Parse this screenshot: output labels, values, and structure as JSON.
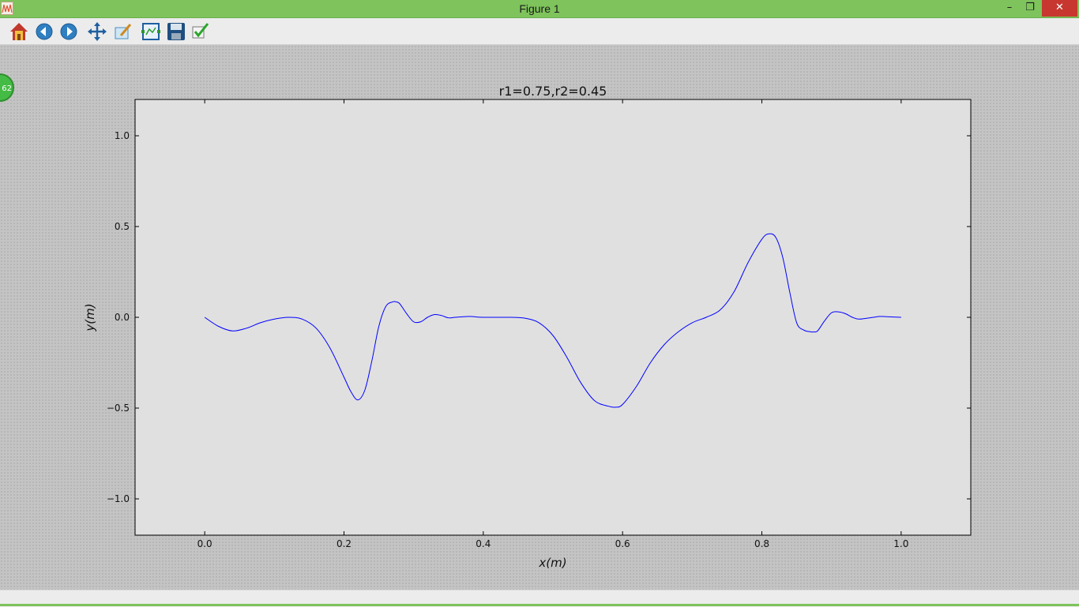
{
  "window": {
    "title": "Figure 1",
    "minimize_glyph": "–",
    "maximize_glyph": "❐",
    "close_glyph": "✕"
  },
  "toolbar": {
    "buttons": [
      "home-icon",
      "back-icon",
      "forward-icon",
      "pan-icon",
      "edit-parameters-icon",
      "configure-subplots-icon",
      "save-icon",
      "apply-icon"
    ]
  },
  "badge": {
    "text": "62"
  },
  "chart_data": {
    "type": "line",
    "title": "r1=0.75,r2=0.45",
    "xlabel": "x(m)",
    "ylabel": "y(m)",
    "xlim": [
      -0.1,
      1.1
    ],
    "ylim": [
      -1.2,
      1.2
    ],
    "xticks": [
      0.0,
      0.2,
      0.4,
      0.6,
      0.8,
      1.0
    ],
    "xtick_labels": [
      "0.0",
      "0.2",
      "0.4",
      "0.6",
      "0.8",
      "1.0"
    ],
    "yticks": [
      1.0,
      0.5,
      0.0,
      -0.5,
      -1.0
    ],
    "ytick_labels": [
      "1.0",
      "0.5",
      "0.0",
      "−0.5",
      "−1.0"
    ],
    "grid": false,
    "series": [
      {
        "name": "y",
        "color": "#0000ff",
        "x": [
          0.0,
          0.02,
          0.04,
          0.06,
          0.08,
          0.1,
          0.12,
          0.14,
          0.16,
          0.18,
          0.2,
          0.21,
          0.22,
          0.23,
          0.24,
          0.25,
          0.26,
          0.27,
          0.275,
          0.28,
          0.29,
          0.3,
          0.31,
          0.32,
          0.33,
          0.34,
          0.35,
          0.36,
          0.38,
          0.4,
          0.44,
          0.46,
          0.48,
          0.5,
          0.52,
          0.54,
          0.56,
          0.58,
          0.59,
          0.6,
          0.62,
          0.64,
          0.66,
          0.68,
          0.7,
          0.72,
          0.74,
          0.76,
          0.78,
          0.8,
          0.81,
          0.82,
          0.83,
          0.84,
          0.85,
          0.86,
          0.87,
          0.875,
          0.88,
          0.89,
          0.9,
          0.91,
          0.92,
          0.93,
          0.94,
          0.96,
          0.97,
          0.98,
          1.0
        ],
        "y": [
          0.0,
          -0.05,
          -0.075,
          -0.06,
          -0.03,
          -0.01,
          0.0,
          -0.01,
          -0.06,
          -0.17,
          -0.33,
          -0.41,
          -0.455,
          -0.4,
          -0.24,
          -0.05,
          0.06,
          0.085,
          0.085,
          0.075,
          0.02,
          -0.025,
          -0.025,
          0.0,
          0.015,
          0.01,
          -0.003,
          0.0,
          0.005,
          0.0,
          0.0,
          -0.005,
          -0.03,
          -0.1,
          -0.22,
          -0.36,
          -0.46,
          -0.49,
          -0.495,
          -0.48,
          -0.38,
          -0.25,
          -0.15,
          -0.08,
          -0.03,
          0.0,
          0.04,
          0.14,
          0.3,
          0.43,
          0.46,
          0.44,
          0.33,
          0.14,
          -0.03,
          -0.07,
          -0.08,
          -0.08,
          -0.075,
          -0.02,
          0.025,
          0.03,
          0.02,
          0.0,
          -0.01,
          0.0,
          0.005,
          0.003,
          0.0
        ]
      }
    ]
  }
}
